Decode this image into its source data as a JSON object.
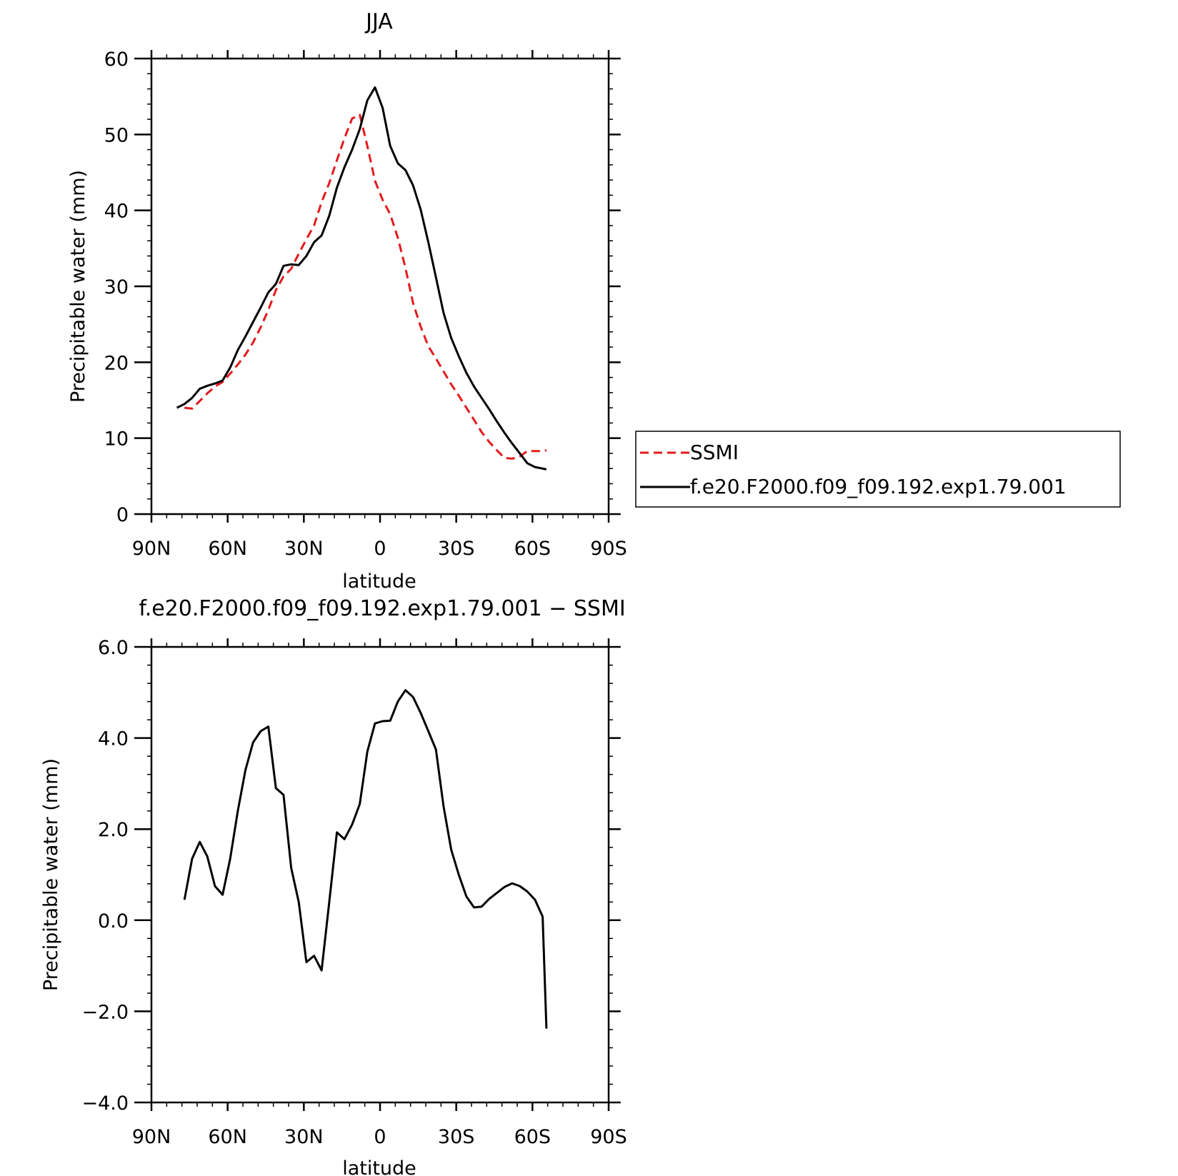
{
  "colors": {
    "obs": "#e31a1c",
    "model": "#000000",
    "axis": "#000000"
  },
  "chart_data": [
    {
      "type": "line",
      "title": "JJA",
      "xlabel": "latitude",
      "ylabel": "Precipitable water (mm)",
      "xlim": [
        90,
        -90
      ],
      "ylim": [
        0,
        60
      ],
      "xticks": [
        {
          "v": 90,
          "label": "90N"
        },
        {
          "v": 60,
          "label": "60N"
        },
        {
          "v": 30,
          "label": "30N"
        },
        {
          "v": 0,
          "label": "0"
        },
        {
          "v": -30,
          "label": "30S"
        },
        {
          "v": -60,
          "label": "60S"
        },
        {
          "v": -90,
          "label": "90S"
        }
      ],
      "yticks": [
        {
          "v": 0,
          "label": "0"
        },
        {
          "v": 10,
          "label": "10"
        },
        {
          "v": 20,
          "label": "20"
        },
        {
          "v": 30,
          "label": "30"
        },
        {
          "v": 40,
          "label": "40"
        },
        {
          "v": 50,
          "label": "50"
        },
        {
          "v": 60,
          "label": "60"
        }
      ],
      "legend": {
        "placement": "right",
        "entries": [
          "SSMI",
          "f.e20.F2000.f09_f09.192.exp1.79.001"
        ]
      },
      "series": [
        {
          "name": "SSMI",
          "style": "dashed",
          "color": "#e31a1c",
          "x": [
            77,
            74,
            71,
            68,
            65,
            62,
            59,
            56,
            53,
            50,
            47,
            44,
            41,
            38,
            35,
            32,
            29,
            26,
            23,
            20,
            17,
            14,
            11,
            8,
            5,
            2,
            -1,
            -4,
            -7,
            -10,
            -13,
            -16,
            -19,
            -22,
            -25,
            -28,
            -31,
            -34,
            -37,
            -40,
            -43,
            -46,
            -49,
            -52,
            -55,
            -58,
            -61,
            -64,
            -65.5
          ],
          "values": [
            14.0,
            13.9,
            14.9,
            15.9,
            16.8,
            17.4,
            18.5,
            19.7,
            21.0,
            22.6,
            24.6,
            26.9,
            29.5,
            31.3,
            32.3,
            34.3,
            36.2,
            38.0,
            41.1,
            43.6,
            46.6,
            49.5,
            52.1,
            52.6,
            48.5,
            43.9,
            41.4,
            39.5,
            36.4,
            32.4,
            27.8,
            24.7,
            22.1,
            20.5,
            18.8,
            17.1,
            15.6,
            14.0,
            12.4,
            10.8,
            9.5,
            8.4,
            7.4,
            7.3,
            7.6,
            8.3,
            8.3,
            8.3,
            8.4
          ]
        },
        {
          "name": "f.e20.F2000.f09_f09.192.exp1.79.001",
          "style": "solid",
          "color": "#000000",
          "x": [
            80,
            77,
            74,
            71,
            68,
            65,
            62,
            59,
            56,
            53,
            50,
            47,
            44,
            41,
            38,
            35,
            32,
            29,
            26,
            23,
            20,
            17,
            14,
            11,
            8,
            5,
            2,
            -1,
            -4,
            -7,
            -10,
            -13,
            -16,
            -19,
            -22,
            -25,
            -28,
            -31,
            -34,
            -37,
            -40,
            -43,
            -46,
            -49,
            -52,
            -55,
            -58,
            -61,
            -65.5
          ],
          "values": [
            14.0,
            14.5,
            15.3,
            16.5,
            16.9,
            17.2,
            17.6,
            19.3,
            21.6,
            23.4,
            25.3,
            27.2,
            29.2,
            30.3,
            32.7,
            32.9,
            32.8,
            34.0,
            35.8,
            36.7,
            39.3,
            43.0,
            45.7,
            48.0,
            50.7,
            54.5,
            56.2,
            53.5,
            48.5,
            46.2,
            45.3,
            43.3,
            40.1,
            35.8,
            31.2,
            26.5,
            23.2,
            20.8,
            18.6,
            16.8,
            15.3,
            13.8,
            12.2,
            10.7,
            9.3,
            8.0,
            6.7,
            6.2,
            5.9
          ]
        }
      ]
    },
    {
      "type": "line",
      "title": "f.e20.F2000.f09_f09.192.exp1.79.001 − SSMI",
      "xlabel": "latitude",
      "ylabel": "Precipitable water (mm)",
      "xlim": [
        90,
        -90
      ],
      "ylim": [
        -4,
        6
      ],
      "xticks": [
        {
          "v": 90,
          "label": "90N"
        },
        {
          "v": 60,
          "label": "60N"
        },
        {
          "v": 30,
          "label": "30N"
        },
        {
          "v": 0,
          "label": "0"
        },
        {
          "v": -30,
          "label": "30S"
        },
        {
          "v": -60,
          "label": "60S"
        },
        {
          "v": -90,
          "label": "90S"
        }
      ],
      "yticks": [
        {
          "v": -4,
          "label": "−4.0"
        },
        {
          "v": -2,
          "label": "−2.0"
        },
        {
          "v": 0,
          "label": "0.0"
        },
        {
          "v": 2,
          "label": "2.0"
        },
        {
          "v": 4,
          "label": "4.0"
        },
        {
          "v": 6,
          "label": "6.0"
        }
      ],
      "series": [
        {
          "style": "solid",
          "color": "#000000",
          "x": [
            77,
            74,
            71,
            68,
            65,
            62,
            59,
            56,
            53,
            50,
            47,
            44,
            41,
            38,
            35,
            32,
            29,
            26,
            23,
            20,
            17,
            14,
            11,
            8,
            5,
            2,
            -1,
            -4,
            -7,
            -10,
            -13,
            -16,
            -19,
            -22,
            -25,
            -28,
            -31,
            -34,
            -37,
            -40,
            -43,
            -46,
            -49,
            -52,
            -55,
            -58,
            -61,
            -64,
            -65.5
          ],
          "values": [
            0.45,
            1.35,
            1.72,
            1.4,
            0.75,
            0.56,
            1.35,
            2.4,
            3.3,
            3.9,
            4.15,
            4.25,
            2.9,
            2.75,
            1.15,
            0.4,
            -0.92,
            -0.78,
            -1.1,
            0.4,
            1.93,
            1.78,
            2.1,
            2.55,
            3.7,
            4.32,
            4.37,
            4.38,
            4.8,
            5.05,
            4.9,
            4.55,
            4.15,
            3.75,
            2.5,
            1.55,
            1.0,
            0.52,
            0.28,
            0.3,
            0.47,
            0.6,
            0.73,
            0.81,
            0.75,
            0.63,
            0.45,
            0.08,
            -2.38
          ]
        }
      ]
    }
  ]
}
